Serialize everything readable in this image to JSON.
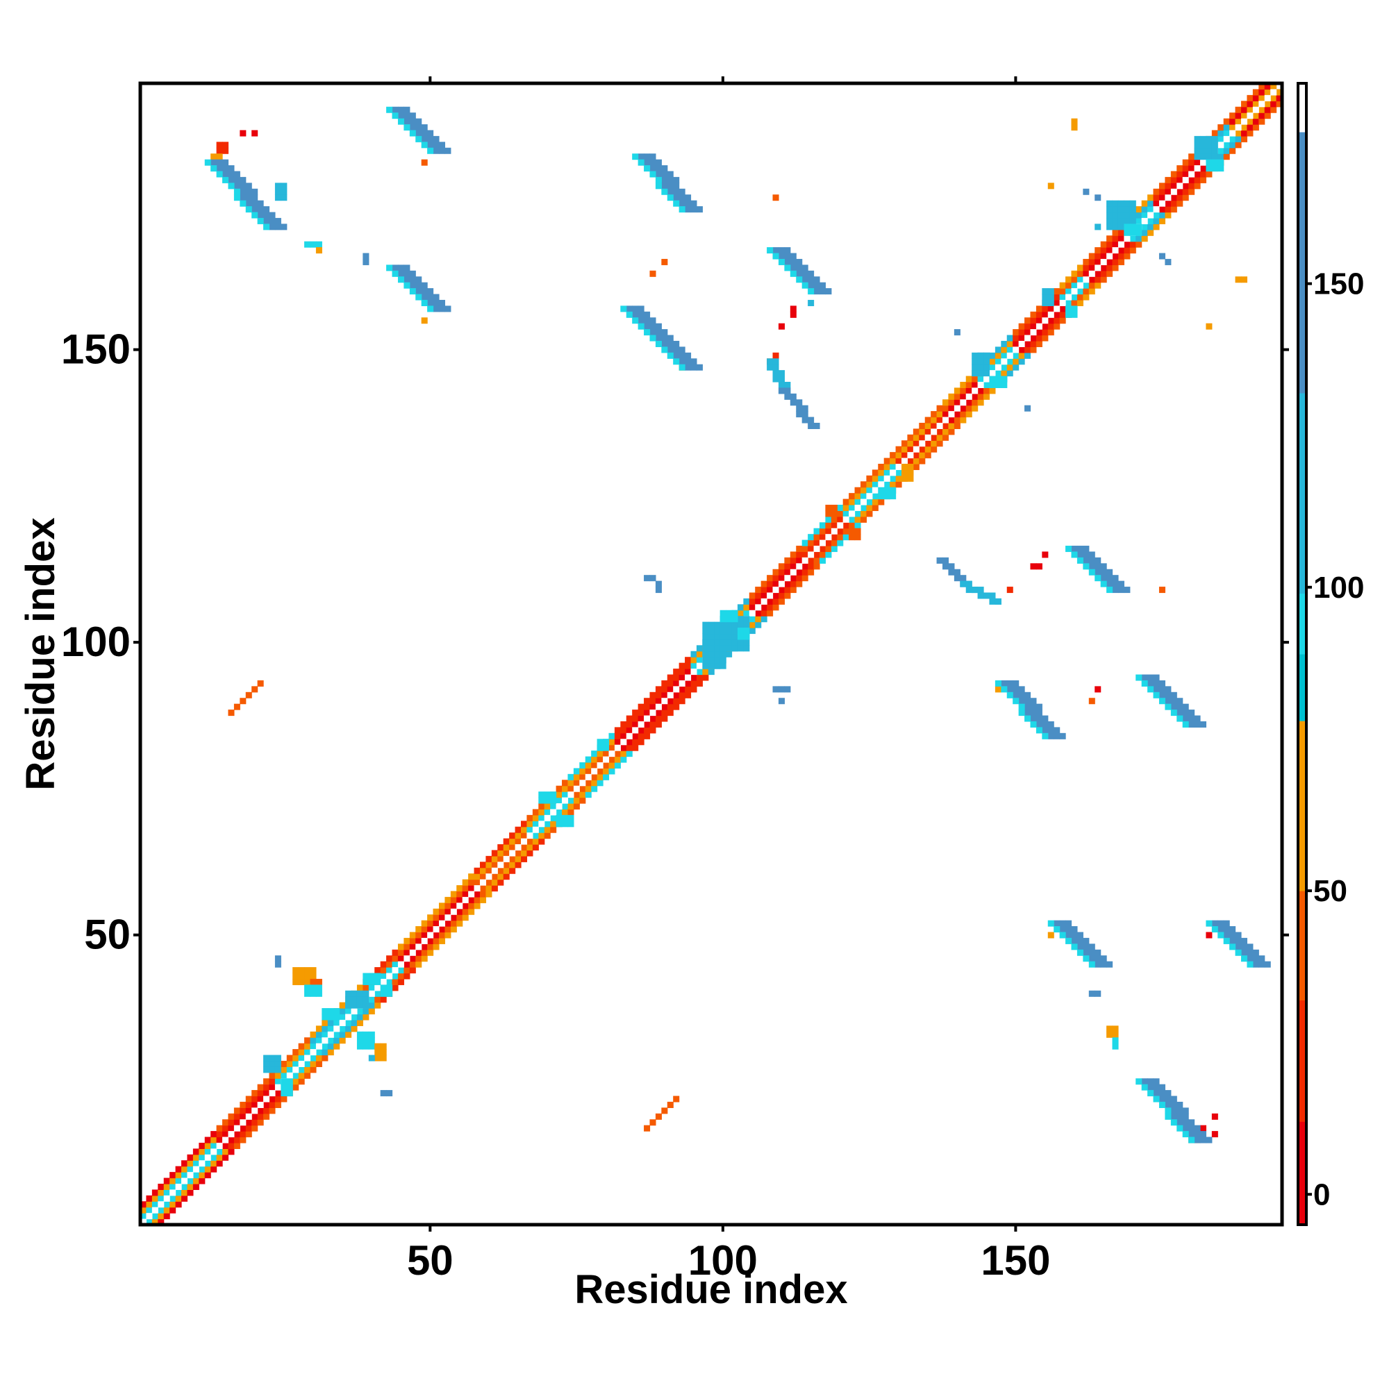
{
  "chart_data": {
    "type": "heatmap",
    "title": "",
    "xlabel": "Residue index",
    "ylabel": "Residue index",
    "xlim": [
      1,
      195
    ],
    "ylim": [
      1,
      195
    ],
    "x_ticks": [
      50,
      100,
      150
    ],
    "y_ticks": [
      50,
      100,
      150
    ],
    "x_tick_labels": [
      "50",
      "100",
      "150"
    ],
    "y_tick_labels": [
      "50",
      "100",
      "150"
    ],
    "grid": false,
    "legend": "right",
    "colorbar": {
      "range": [
        -5,
        183
      ],
      "ticks": [
        0,
        50,
        100,
        150
      ],
      "tick_labels": [
        "0",
        "50",
        "100",
        "150"
      ],
      "bands": [
        {
          "from": -5,
          "to": 12,
          "color": "#e8000b"
        },
        {
          "from": 12,
          "to": 32,
          "color": "#f22a00"
        },
        {
          "from": 32,
          "to": 50,
          "color": "#f55a00"
        },
        {
          "from": 50,
          "to": 78,
          "color": "#f59b00"
        },
        {
          "from": 78,
          "to": 89,
          "color": "#00c0d0"
        },
        {
          "from": 89,
          "to": 99,
          "color": "#1ed8e8"
        },
        {
          "from": 99,
          "to": 132,
          "color": "#27b7da"
        },
        {
          "from": 132,
          "to": 175,
          "color": "#4a8ec4"
        },
        {
          "from": 175,
          "to": 183,
          "color": "#ffffff"
        }
      ]
    },
    "diagonal": {
      "from": 1,
      "to": 195
    },
    "diagonal_bands": [
      {
        "from": 1,
        "to": 14,
        "colors": [
          "#1ed8e8",
          "#f59b00",
          "#e8000b"
        ]
      },
      {
        "from": 14,
        "to": 24,
        "colors": [
          "#e8000b",
          "#f22a00",
          "#f55a00"
        ]
      },
      {
        "from": 24,
        "to": 30,
        "colors": [
          "#1ed8e8",
          "#f59b00",
          "#f55a00"
        ]
      },
      {
        "from": 30,
        "to": 39,
        "colors": [
          "#1ed8e8",
          "#27b7da",
          "#f59b00"
        ]
      },
      {
        "from": 39,
        "to": 45,
        "colors": [
          "#1ed8e8",
          "#f55a00",
          "#f22a00"
        ]
      },
      {
        "from": 45,
        "to": 58,
        "colors": [
          "#e8000b",
          "#f55a00",
          "#f59b00"
        ]
      },
      {
        "from": 58,
        "to": 67,
        "colors": [
          "#f55a00",
          "#f59b00",
          "#f22a00"
        ]
      },
      {
        "from": 67,
        "to": 74,
        "colors": [
          "#1ed8e8",
          "#f59b00",
          "#f55a00"
        ]
      },
      {
        "from": 74,
        "to": 82,
        "colors": [
          "#f55a00",
          "#f59b00",
          "#1ed8e8"
        ]
      },
      {
        "from": 82,
        "to": 95,
        "colors": [
          "#e8000b",
          "#f22a00",
          "#f22a00"
        ]
      },
      {
        "from": 95,
        "to": 105,
        "colors": [
          "#1ed8e8",
          "#f59b00",
          "#27b7da"
        ]
      },
      {
        "from": 105,
        "to": 114,
        "colors": [
          "#e8000b",
          "#f22a00",
          "#f55a00"
        ]
      },
      {
        "from": 114,
        "to": 121,
        "colors": [
          "#f22a00",
          "#f55a00",
          "#1ed8e8"
        ]
      },
      {
        "from": 121,
        "to": 130,
        "colors": [
          "#1ed8e8",
          "#f59b00",
          "#f55a00"
        ]
      },
      {
        "from": 130,
        "to": 138,
        "colors": [
          "#f22a00",
          "#f59b00",
          "#f55a00"
        ]
      },
      {
        "from": 138,
        "to": 144,
        "colors": [
          "#e8000b",
          "#f55a00",
          "#f59b00"
        ]
      },
      {
        "from": 144,
        "to": 150,
        "colors": [
          "#1ed8e8",
          "#f59b00",
          "#27b7da"
        ]
      },
      {
        "from": 150,
        "to": 158,
        "colors": [
          "#e8000b",
          "#f22a00",
          "#f55a00"
        ]
      },
      {
        "from": 158,
        "to": 162,
        "colors": [
          "#1ed8e8",
          "#f55a00",
          "#f59b00"
        ]
      },
      {
        "from": 162,
        "to": 169,
        "colors": [
          "#e8000b",
          "#f22a00",
          "#f55a00"
        ]
      },
      {
        "from": 169,
        "to": 174,
        "colors": [
          "#1ed8e8",
          "#27b7da",
          "#f59b00"
        ]
      },
      {
        "from": 174,
        "to": 182,
        "colors": [
          "#e8000b",
          "#f22a00",
          "#f55a00"
        ]
      },
      {
        "from": 182,
        "to": 187,
        "colors": [
          "#1ed8e8",
          "#27b7da",
          "#f55a00"
        ]
      },
      {
        "from": 187,
        "to": 195,
        "colors": [
          "#f59b00",
          "#e8000b",
          "#f55a00"
        ]
      }
    ],
    "segments": [
      {
        "x1": 44,
        "y1": 191,
        "x2": 51,
        "y2": 184,
        "width": 3,
        "color": "#4a8ec4"
      },
      {
        "x1": 13,
        "y1": 182,
        "x2": 23,
        "y2": 171,
        "width": 3,
        "color": "#4a8ec4"
      },
      {
        "x1": 44,
        "y1": 164,
        "x2": 51,
        "y2": 157,
        "width": 3,
        "color": "#4a8ec4"
      },
      {
        "x1": 86,
        "y1": 183,
        "x2": 94,
        "y2": 174,
        "width": 3,
        "color": "#4a8ec4"
      },
      {
        "x1": 84,
        "y1": 157,
        "x2": 94,
        "y2": 147,
        "width": 3,
        "color": "#4a8ec4"
      },
      {
        "x1": 109,
        "y1": 167,
        "x2": 116,
        "y2": 160,
        "width": 3,
        "color": "#4a8ec4"
      },
      {
        "x1": 108,
        "y1": 148,
        "x2": 110,
        "y2": 143,
        "width": 2,
        "color": "#27b7da"
      },
      {
        "x1": 110,
        "y1": 143,
        "x2": 115,
        "y2": 137,
        "width": 2,
        "color": "#4a8ec4"
      },
      {
        "x1": 137,
        "y1": 114,
        "x2": 141,
        "y2": 110,
        "width": 2,
        "color": "#4a8ec4"
      },
      {
        "x1": 141,
        "y1": 110,
        "x2": 146,
        "y2": 107,
        "width": 2,
        "color": "#27b7da"
      },
      {
        "x1": 160,
        "y1": 116,
        "x2": 167,
        "y2": 109,
        "width": 3,
        "color": "#4a8ec4"
      },
      {
        "x1": 148,
        "y1": 93,
        "x2": 156,
        "y2": 84,
        "width": 3,
        "color": "#4a8ec4"
      },
      {
        "x1": 172,
        "y1": 94,
        "x2": 180,
        "y2": 86,
        "width": 3,
        "color": "#4a8ec4"
      },
      {
        "x1": 157,
        "y1": 52,
        "x2": 164,
        "y2": 45,
        "width": 3,
        "color": "#4a8ec4"
      },
      {
        "x1": 184,
        "y1": 52,
        "x2": 191,
        "y2": 45,
        "width": 3,
        "color": "#4a8ec4"
      },
      {
        "x1": 172,
        "y1": 25,
        "x2": 181,
        "y2": 15,
        "width": 3,
        "color": "#4a8ec4"
      },
      {
        "x1": 16,
        "y1": 88,
        "x2": 21,
        "y2": 93,
        "width": 1,
        "color": "#f55a00"
      },
      {
        "x1": 87,
        "y1": 17,
        "x2": 92,
        "y2": 22,
        "width": 1,
        "color": "#f55a00"
      }
    ],
    "blobs": [
      {
        "x": 24,
        "y": 176,
        "w": 2,
        "h": 3,
        "color": "#27b7da"
      },
      {
        "x": 29,
        "y": 168,
        "w": 3,
        "h": 1,
        "color": "#1ed8e8"
      },
      {
        "x": 31,
        "y": 167,
        "w": 1,
        "h": 1,
        "color": "#f59b00"
      },
      {
        "x": 39,
        "y": 165,
        "w": 1,
        "h": 2,
        "color": "#4a8ec4"
      },
      {
        "x": 14,
        "y": 184,
        "w": 2,
        "h": 2,
        "color": "#f22a00"
      },
      {
        "x": 18,
        "y": 187,
        "w": 1,
        "h": 1,
        "color": "#e8000b"
      },
      {
        "x": 20,
        "y": 187,
        "w": 1,
        "h": 1,
        "color": "#e8000b"
      },
      {
        "x": 13,
        "y": 183,
        "w": 2,
        "h": 1,
        "color": "#f59b00"
      },
      {
        "x": 49,
        "y": 182,
        "w": 1,
        "h": 1,
        "color": "#f55a00"
      },
      {
        "x": 49,
        "y": 155,
        "w": 1,
        "h": 1,
        "color": "#f59b00"
      },
      {
        "x": 93,
        "y": 147,
        "w": 1,
        "h": 1,
        "color": "#f59b00"
      },
      {
        "x": 88,
        "y": 163,
        "w": 1,
        "h": 1,
        "color": "#f55a00"
      },
      {
        "x": 90,
        "y": 165,
        "w": 1,
        "h": 1,
        "color": "#f55a00"
      },
      {
        "x": 109,
        "y": 176,
        "w": 1,
        "h": 1,
        "color": "#f55a00"
      },
      {
        "x": 115,
        "y": 158,
        "w": 1,
        "h": 1,
        "color": "#27b7da"
      },
      {
        "x": 112,
        "y": 156,
        "w": 1,
        "h": 2,
        "color": "#e8000b"
      },
      {
        "x": 110,
        "y": 154,
        "w": 1,
        "h": 1,
        "color": "#e8000b"
      },
      {
        "x": 109,
        "y": 149,
        "w": 1,
        "h": 1,
        "color": "#f22a00"
      },
      {
        "x": 108,
        "y": 148,
        "w": 1,
        "h": 1,
        "color": "#f55a00"
      },
      {
        "x": 160,
        "y": 188,
        "w": 1,
        "h": 2,
        "color": "#f59b00"
      },
      {
        "x": 156,
        "y": 178,
        "w": 1,
        "h": 1,
        "color": "#f59b00"
      },
      {
        "x": 162,
        "y": 177,
        "w": 1,
        "h": 1,
        "color": "#4a8ec4"
      },
      {
        "x": 164,
        "y": 176,
        "w": 1,
        "h": 1,
        "color": "#4a8ec4"
      },
      {
        "x": 164,
        "y": 171,
        "w": 1,
        "h": 1,
        "color": "#27b7da"
      },
      {
        "x": 175,
        "y": 166,
        "w": 1,
        "h": 1,
        "color": "#4a8ec4"
      },
      {
        "x": 176,
        "y": 165,
        "w": 1,
        "h": 1,
        "color": "#4a8ec4"
      },
      {
        "x": 183,
        "y": 154,
        "w": 1,
        "h": 1,
        "color": "#f59b00"
      },
      {
        "x": 188,
        "y": 162,
        "w": 2,
        "h": 1,
        "color": "#f59b00"
      },
      {
        "x": 144,
        "y": 149,
        "w": 2,
        "h": 1,
        "color": "#4a8ec4"
      },
      {
        "x": 148,
        "y": 145,
        "w": 1,
        "h": 1,
        "color": "#4a8ec4"
      },
      {
        "x": 152,
        "y": 140,
        "w": 1,
        "h": 1,
        "color": "#4a8ec4"
      },
      {
        "x": 140,
        "y": 153,
        "w": 1,
        "h": 1,
        "color": "#4a8ec4"
      },
      {
        "x": 87,
        "y": 111,
        "w": 2,
        "h": 1,
        "color": "#4a8ec4"
      },
      {
        "x": 89,
        "y": 109,
        "w": 1,
        "h": 2,
        "color": "#4a8ec4"
      },
      {
        "x": 109,
        "y": 92,
        "w": 3,
        "h": 1,
        "color": "#4a8ec4"
      },
      {
        "x": 110,
        "y": 90,
        "w": 1,
        "h": 1,
        "color": "#4a8ec4"
      },
      {
        "x": 147,
        "y": 107,
        "w": 1,
        "h": 1,
        "color": "#1ed8e8"
      },
      {
        "x": 149,
        "y": 109,
        "w": 1,
        "h": 1,
        "color": "#f22a00"
      },
      {
        "x": 153,
        "y": 113,
        "w": 2,
        "h": 1,
        "color": "#e8000b"
      },
      {
        "x": 155,
        "y": 115,
        "w": 1,
        "h": 1,
        "color": "#e8000b"
      },
      {
        "x": 175,
        "y": 109,
        "w": 1,
        "h": 1,
        "color": "#f55a00"
      },
      {
        "x": 147,
        "y": 92,
        "w": 1,
        "h": 1,
        "color": "#f59b00"
      },
      {
        "x": 163,
        "y": 90,
        "w": 1,
        "h": 1,
        "color": "#f55a00"
      },
      {
        "x": 164,
        "y": 92,
        "w": 1,
        "h": 1,
        "color": "#e8000b"
      },
      {
        "x": 156,
        "y": 50,
        "w": 1,
        "h": 1,
        "color": "#f59b00"
      },
      {
        "x": 163,
        "y": 40,
        "w": 2,
        "h": 1,
        "color": "#4a8ec4"
      },
      {
        "x": 166,
        "y": 33,
        "w": 2,
        "h": 2,
        "color": "#f59b00"
      },
      {
        "x": 167,
        "y": 31,
        "w": 1,
        "h": 2,
        "color": "#1ed8e8"
      },
      {
        "x": 183,
        "y": 50,
        "w": 1,
        "h": 1,
        "color": "#e8000b"
      },
      {
        "x": 180,
        "y": 15,
        "w": 2,
        "h": 2,
        "color": "#f55a00"
      },
      {
        "x": 182,
        "y": 17,
        "w": 1,
        "h": 1,
        "color": "#e8000b"
      },
      {
        "x": 184,
        "y": 16,
        "w": 1,
        "h": 1,
        "color": "#e8000b"
      },
      {
        "x": 184,
        "y": 19,
        "w": 1,
        "h": 1,
        "color": "#e8000b"
      },
      {
        "x": 27,
        "y": 42,
        "w": 4,
        "h": 3,
        "color": "#f59b00"
      },
      {
        "x": 30,
        "y": 42,
        "w": 2,
        "h": 1,
        "color": "#f55a00"
      },
      {
        "x": 29,
        "y": 40,
        "w": 3,
        "h": 2,
        "color": "#1ed8e8"
      },
      {
        "x": 24,
        "y": 45,
        "w": 1,
        "h": 2,
        "color": "#4a8ec4"
      },
      {
        "x": 38,
        "y": 31,
        "w": 3,
        "h": 3,
        "color": "#1ed8e8"
      },
      {
        "x": 41,
        "y": 29,
        "w": 2,
        "h": 3,
        "color": "#f59b00"
      },
      {
        "x": 40,
        "y": 29,
        "w": 1,
        "h": 1,
        "color": "#27b7da"
      },
      {
        "x": 42,
        "y": 23,
        "w": 2,
        "h": 1,
        "color": "#4a8ec4"
      },
      {
        "x": 97,
        "y": 96,
        "w": 4,
        "h": 8,
        "color": "#27b7da"
      },
      {
        "x": 100,
        "y": 99,
        "w": 5,
        "h": 6,
        "color": "#27b7da"
      },
      {
        "x": 100,
        "y": 104,
        "w": 3,
        "h": 2,
        "color": "#1ed8e8"
      },
      {
        "x": 103,
        "y": 101,
        "w": 2,
        "h": 2,
        "color": "#1ed8e8"
      },
      {
        "x": 166,
        "y": 171,
        "w": 5,
        "h": 5,
        "color": "#27b7da"
      },
      {
        "x": 169,
        "y": 170,
        "w": 3,
        "h": 2,
        "color": "#1ed8e8"
      },
      {
        "x": 181,
        "y": 183,
        "w": 4,
        "h": 4,
        "color": "#27b7da"
      },
      {
        "x": 183,
        "y": 181,
        "w": 3,
        "h": 2,
        "color": "#1ed8e8"
      },
      {
        "x": 143,
        "y": 146,
        "w": 3,
        "h": 4,
        "color": "#27b7da"
      },
      {
        "x": 146,
        "y": 144,
        "w": 3,
        "h": 2,
        "color": "#1ed8e8"
      },
      {
        "x": 155,
        "y": 158,
        "w": 2,
        "h": 3,
        "color": "#27b7da"
      },
      {
        "x": 159,
        "y": 156,
        "w": 2,
        "h": 2,
        "color": "#1ed8e8"
      },
      {
        "x": 36,
        "y": 38,
        "w": 4,
        "h": 3,
        "color": "#27b7da"
      },
      {
        "x": 32,
        "y": 36,
        "w": 3,
        "h": 2,
        "color": "#1ed8e8"
      },
      {
        "x": 39,
        "y": 42,
        "w": 3,
        "h": 2,
        "color": "#1ed8e8"
      },
      {
        "x": 42,
        "y": 40,
        "w": 2,
        "h": 2,
        "color": "#1ed8e8"
      },
      {
        "x": 22,
        "y": 27,
        "w": 3,
        "h": 3,
        "color": "#27b7da"
      },
      {
        "x": 25,
        "y": 23,
        "w": 2,
        "h": 3,
        "color": "#1ed8e8"
      },
      {
        "x": 69,
        "y": 73,
        "w": 3,
        "h": 2,
        "color": "#1ed8e8"
      },
      {
        "x": 72,
        "y": 69,
        "w": 3,
        "h": 2,
        "color": "#1ed8e8"
      },
      {
        "x": 79,
        "y": 82,
        "w": 2,
        "h": 2,
        "color": "#1ed8e8"
      },
      {
        "x": 118,
        "y": 122,
        "w": 2,
        "h": 2,
        "color": "#f55a00"
      },
      {
        "x": 122,
        "y": 118,
        "w": 2,
        "h": 2,
        "color": "#f55a00"
      },
      {
        "x": 127,
        "y": 125,
        "w": 3,
        "h": 2,
        "color": "#1ed8e8"
      },
      {
        "x": 131,
        "y": 128,
        "w": 2,
        "h": 3,
        "color": "#f59b00"
      }
    ]
  }
}
